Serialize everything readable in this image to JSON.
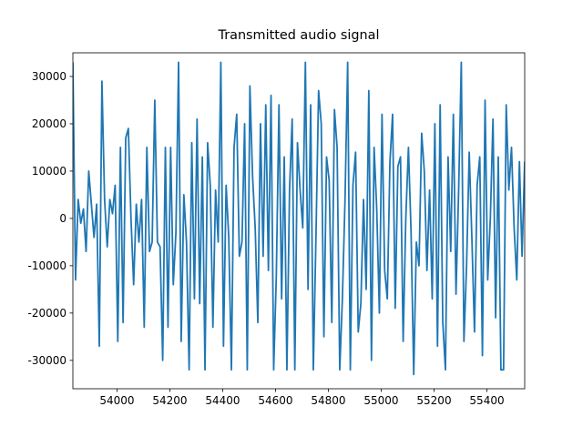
{
  "chart_data": {
    "type": "line",
    "title": "Transmitted audio signal",
    "x": [
      53833,
      53843,
      53853,
      53863,
      53873,
      53883,
      53893,
      53903,
      53913,
      53923,
      53933,
      53943,
      53953,
      53963,
      53973,
      53983,
      53993,
      54003,
      54013,
      54023,
      54033,
      54043,
      54053,
      54063,
      54073,
      54083,
      54093,
      54103,
      54113,
      54123,
      54133,
      54143,
      54153,
      54163,
      54173,
      54183,
      54193,
      54203,
      54213,
      54223,
      54233,
      54243,
      54253,
      54263,
      54273,
      54283,
      54293,
      54303,
      54313,
      54323,
      54333,
      54343,
      54353,
      54363,
      54373,
      54383,
      54393,
      54403,
      54413,
      54423,
      54433,
      54443,
      54453,
      54463,
      54473,
      54483,
      54493,
      54503,
      54513,
      54523,
      54533,
      54543,
      54553,
      54563,
      54573,
      54583,
      54593,
      54603,
      54613,
      54623,
      54633,
      54643,
      54653,
      54663,
      54673,
      54683,
      54693,
      54703,
      54713,
      54723,
      54733,
      54743,
      54753,
      54763,
      54773,
      54783,
      54793,
      54803,
      54813,
      54823,
      54833,
      54843,
      54853,
      54863,
      54873,
      54883,
      54893,
      54903,
      54913,
      54923,
      54933,
      54943,
      54953,
      54963,
      54973,
      54983,
      54993,
      55003,
      55013,
      55023,
      55033,
      55043,
      55053,
      55063,
      55073,
      55083,
      55093,
      55103,
      55113,
      55123,
      55133,
      55143,
      55153,
      55163,
      55173,
      55183,
      55193,
      55203,
      55213,
      55223,
      55233,
      55243,
      55253,
      55263,
      55273,
      55283,
      55293,
      55303,
      55313,
      55323,
      55333,
      55343,
      55353,
      55363,
      55373,
      55383,
      55393,
      55403,
      55413,
      55423,
      55433,
      55443,
      55453,
      55463,
      55473,
      55483,
      55493,
      55503,
      55513,
      55523,
      55533,
      55543
    ],
    "series": [
      {
        "color": "#1f77b4",
        "values": [
          33000,
          -13000,
          4000,
          -1000,
          2000,
          -7000,
          10000,
          3000,
          -4000,
          3000,
          -27000,
          29000,
          4000,
          -6000,
          4000,
          1000,
          7000,
          -26000,
          15000,
          -22000,
          17000,
          19000,
          0,
          -14000,
          3000,
          -5000,
          4000,
          -23000,
          15000,
          -7000,
          -5000,
          25000,
          -5000,
          -6000,
          -30000,
          15000,
          -23000,
          15000,
          -14000,
          -3000,
          33000,
          -26000,
          5000,
          -5000,
          -32000,
          16000,
          -17000,
          21000,
          -18000,
          13000,
          -32000,
          16000,
          7000,
          -23000,
          6000,
          -5000,
          33000,
          -27000,
          7000,
          -4000,
          -32000,
          15000,
          22000,
          -8000,
          -5000,
          20000,
          -32000,
          28000,
          9000,
          -2000,
          -22000,
          20000,
          -8000,
          24000,
          -11000,
          26000,
          -32000,
          -12000,
          24000,
          -17000,
          13000,
          -32000,
          6000,
          21000,
          -32000,
          16000,
          6000,
          -2000,
          33000,
          -15000,
          24000,
          -32000,
          -4000,
          27000,
          20000,
          -25000,
          13000,
          8000,
          -22000,
          23000,
          15000,
          -32000,
          -17000,
          4000,
          33000,
          -32000,
          7000,
          14000,
          -24000,
          -18000,
          4000,
          -15000,
          27000,
          -30000,
          15000,
          2000,
          -20000,
          22000,
          -11000,
          -17000,
          12000,
          22000,
          -19000,
          11000,
          13000,
          -26000,
          0,
          15000,
          -3000,
          -33000,
          -5000,
          -10000,
          18000,
          10000,
          -11000,
          6000,
          -17000,
          20000,
          -27000,
          24000,
          -22000,
          -32000,
          13000,
          -7000,
          22000,
          -16000,
          6000,
          33000,
          -26000,
          -10000,
          14000,
          -4000,
          -24000,
          7000,
          13000,
          -29000,
          25000,
          -13000,
          0,
          21000,
          -21000,
          13000,
          -32000,
          -32000,
          24000,
          6000,
          15000,
          -2000,
          -13000,
          12000,
          -8000,
          12000
        ]
      }
    ],
    "xlim": [
      53833,
      55543
    ],
    "ylim": [
      -36000,
      35000
    ],
    "xticks": [
      54000,
      54200,
      54400,
      54600,
      54800,
      55000,
      55200,
      55400
    ],
    "yticks": [
      -30000,
      -20000,
      -10000,
      0,
      10000,
      20000,
      30000
    ]
  }
}
